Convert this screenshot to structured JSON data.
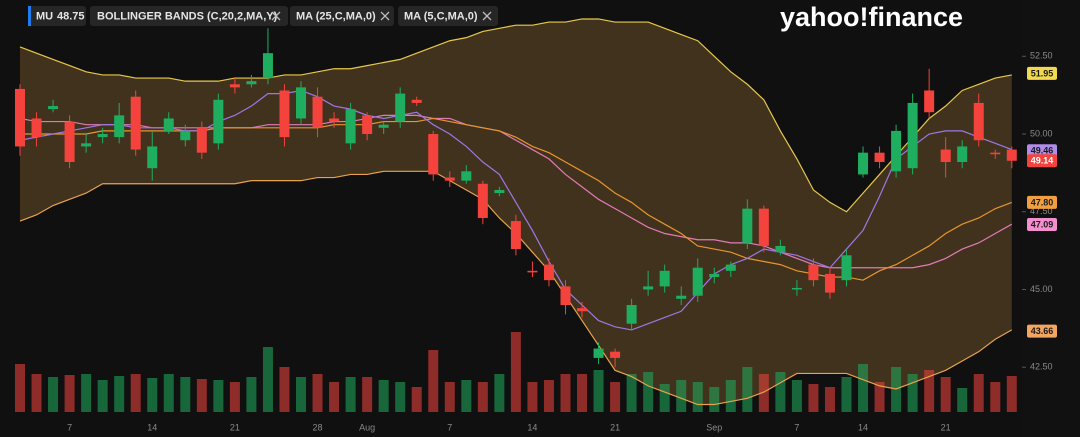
{
  "brand": "yahoo!finance",
  "chart_data": {
    "type": "candlestick",
    "legend": {
      "symbol": "MU",
      "price": 48.75,
      "indicators": [
        "BOLLINGER BANDS (C,20,2,MA,Y)",
        "MA (25,C,MA,0)",
        "MA (5,C,MA,0)"
      ]
    },
    "categories": [
      null,
      null,
      null,
      "7",
      null,
      null,
      null,
      null,
      "14",
      null,
      null,
      null,
      null,
      "21",
      null,
      null,
      null,
      null,
      "28",
      null,
      null,
      "Aug",
      null,
      null,
      null,
      null,
      "7",
      null,
      null,
      null,
      null,
      "14",
      null,
      null,
      null,
      null,
      "21",
      null,
      null,
      null,
      null,
      null,
      "Sep",
      null,
      null,
      null,
      null,
      "7",
      null,
      null,
      null,
      "14",
      null,
      null,
      null,
      null,
      "21",
      null,
      null,
      null,
      null
    ],
    "ylim": [
      54.31,
      41.06
    ],
    "yticks": [
      {
        "value": 52.5,
        "label": "52.50"
      },
      {
        "value": 50,
        "label": "50.00"
      },
      {
        "value": 47.5,
        "label": "47.50"
      },
      {
        "value": 45,
        "label": "45.00"
      },
      {
        "value": 42.5,
        "label": "42.50"
      }
    ],
    "up_color": "#1fae5f",
    "down_color": "#f4433d",
    "candles": {
      "open": [
        51.45,
        50.5,
        50.8,
        50.4,
        49.6,
        49.9,
        49.9,
        51.2,
        48.9,
        50.1,
        49.8,
        50.2,
        49.7,
        51.6,
        51.6,
        51.8,
        51.4,
        50.5,
        51.2,
        50.5,
        49.7,
        50.6,
        50.2,
        50.4,
        51.1,
        50.0,
        48.6,
        48.5,
        48.4,
        48.1,
        47.2,
        45.6,
        45.8,
        45.1,
        44.4,
        42.8,
        43.0,
        43.9,
        45.0,
        45.1,
        44.7,
        44.8,
        45.4,
        45.6,
        46.5,
        47.6,
        46.2,
        45.0,
        45.8,
        45.5,
        45.3,
        48.7,
        49.4,
        48.8,
        48.9,
        51.4,
        49.5,
        49.1,
        51.0,
        49.4,
        49.5
      ],
      "high": [
        51.6,
        50.7,
        51.1,
        50.6,
        50.0,
        50.2,
        51.0,
        51.4,
        50.1,
        50.7,
        50.3,
        50.4,
        51.3,
        51.8,
        51.9,
        53.4,
        51.6,
        51.7,
        51.5,
        50.7,
        51.0,
        50.7,
        50.4,
        51.5,
        51.2,
        50.1,
        48.8,
        49.0,
        48.5,
        48.3,
        47.4,
        45.9,
        46.0,
        45.3,
        44.6,
        43.3,
        43.1,
        44.7,
        45.6,
        45.8,
        45.1,
        46.0,
        45.7,
        45.9,
        47.9,
        47.7,
        46.6,
        45.3,
        46.0,
        45.7,
        46.3,
        49.6,
        49.6,
        50.3,
        51.3,
        52.1,
        49.9,
        49.8,
        51.3,
        49.5,
        49.6
      ],
      "low": [
        49.3,
        49.6,
        50.7,
        48.9,
        49.4,
        49.7,
        49.7,
        49.3,
        48.5,
        50.0,
        49.6,
        49.2,
        49.5,
        51.3,
        51.5,
        51.6,
        49.6,
        50.3,
        49.9,
        50.2,
        49.5,
        49.8,
        50.0,
        50.2,
        50.9,
        48.5,
        48.3,
        48.4,
        47.1,
        48.0,
        46.1,
        45.4,
        45.1,
        44.2,
        44.1,
        42.6,
        42.5,
        43.7,
        44.8,
        44.9,
        44.5,
        44.6,
        45.2,
        45.4,
        46.3,
        46.2,
        46.1,
        44.8,
        45.1,
        44.7,
        45.1,
        48.6,
        48.9,
        48.6,
        48.7,
        50.5,
        48.6,
        48.9,
        49.6,
        49.2,
        48.9
      ],
      "close": [
        49.6,
        49.9,
        50.9,
        49.1,
        49.7,
        50.0,
        50.6,
        49.5,
        49.6,
        50.5,
        50.1,
        49.4,
        51.1,
        51.5,
        51.7,
        52.6,
        49.9,
        51.5,
        50.2,
        50.4,
        50.8,
        50.0,
        50.3,
        51.3,
        51.0,
        48.7,
        48.5,
        48.8,
        47.3,
        48.2,
        46.3,
        45.55,
        45.3,
        44.5,
        44.3,
        43.1,
        42.8,
        44.5,
        45.1,
        45.6,
        44.8,
        45.7,
        45.5,
        45.8,
        47.6,
        46.4,
        46.4,
        45.05,
        45.3,
        44.9,
        46.1,
        49.4,
        49.1,
        50.1,
        51.0,
        50.7,
        49.1,
        49.6,
        49.8,
        49.35,
        49.14
      ],
      "last_value": {
        "value": 49.14,
        "label": "49.14"
      }
    },
    "volume": {
      "vlim": [
        0,
        100
      ],
      "values": [
        48,
        38,
        35,
        37,
        38,
        32,
        36,
        38,
        34,
        38,
        35,
        33,
        32,
        30,
        35,
        65,
        45,
        35,
        38,
        30,
        35,
        35,
        32,
        30,
        25,
        62,
        30,
        32,
        30,
        38,
        80,
        30,
        32,
        38,
        38,
        42,
        30,
        38,
        40,
        28,
        32,
        30,
        25,
        32,
        45,
        38,
        40,
        32,
        28,
        25,
        35,
        48,
        30,
        45,
        38,
        42,
        35,
        24,
        38,
        30,
        36
      ]
    },
    "band_fill": "#4a3820",
    "series": [
      {
        "name": "upper band",
        "color": "#e8c84a",
        "last_value": {
          "value": 51.95,
          "label": "51.95"
        },
        "tag_color": "#f2d94e",
        "values": [
          52.8,
          52.6,
          52.4,
          52.2,
          52.0,
          51.9,
          51.9,
          51.8,
          51.8,
          51.8,
          51.7,
          51.7,
          51.7,
          51.8,
          51.8,
          51.8,
          51.9,
          51.9,
          52.0,
          52.1,
          52.1,
          52.2,
          52.3,
          52.4,
          52.6,
          52.8,
          53.0,
          53.1,
          53.3,
          53.4,
          53.5,
          53.5,
          53.6,
          53.6,
          53.7,
          53.7,
          53.6,
          53.6,
          53.6,
          53.4,
          53.2,
          53.0,
          52.5,
          52.0,
          51.6,
          51.1,
          50.1,
          49.2,
          48.2,
          47.8,
          47.5,
          48.1,
          48.7,
          49.3,
          49.9,
          50.5,
          50.9,
          51.4,
          51.6,
          51.8,
          51.9
        ]
      },
      {
        "name": "middle band",
        "color": "#e27ab8",
        "last_value": {
          "value": 47.09,
          "label": "47.09"
        },
        "tag_color": "#f48fcf",
        "values": [
          50.5,
          50.4,
          50.4,
          50.4,
          50.3,
          50.3,
          50.3,
          50.3,
          50.2,
          50.2,
          50.2,
          50.2,
          50.2,
          50.2,
          50.2,
          50.3,
          50.3,
          50.3,
          50.3,
          50.4,
          50.4,
          50.5,
          50.6,
          50.6,
          50.6,
          50.5,
          50.5,
          50.3,
          50.2,
          50.1,
          49.8,
          49.5,
          49.2,
          48.7,
          48.3,
          47.9,
          47.6,
          47.3,
          47.0,
          46.8,
          46.7,
          46.6,
          46.6,
          46.5,
          46.5,
          46.4,
          46.2,
          46.0,
          45.8,
          45.7,
          45.7,
          45.7,
          45.7,
          45.7,
          45.7,
          45.8,
          46.0,
          46.3,
          46.5,
          46.8,
          47.1
        ]
      },
      {
        "name": "lower band",
        "color": "#e8a24e",
        "last_value": {
          "value": 43.66,
          "label": "43.66"
        },
        "tag_color": "#f2a660",
        "values": [
          47.2,
          47.4,
          47.7,
          47.9,
          48.1,
          48.4,
          48.4,
          48.4,
          48.4,
          48.4,
          48.4,
          48.4,
          48.4,
          48.4,
          48.5,
          48.5,
          48.5,
          48.5,
          48.6,
          48.6,
          48.7,
          48.7,
          48.8,
          48.8,
          48.8,
          48.8,
          48.5,
          48.2,
          47.9,
          47.3,
          46.8,
          46.2,
          45.6,
          44.8,
          44.0,
          43.2,
          42.4,
          42.2,
          41.9,
          41.7,
          41.5,
          41.3,
          41.3,
          41.4,
          41.5,
          41.7,
          42.0,
          42.3,
          42.3,
          42.3,
          42.3,
          42.1,
          41.9,
          41.8,
          42.0,
          42.2,
          42.4,
          42.7,
          43.0,
          43.4,
          43.7
        ]
      },
      {
        "name": "MA 25",
        "color": "#e8952e",
        "last_value": {
          "value": 47.8,
          "label": "47.80"
        },
        "tag_color": "#f0a040",
        "values": [
          50.0,
          50.0,
          50.0,
          50.0,
          50.0,
          50.1,
          50.1,
          50.1,
          50.1,
          50.1,
          50.1,
          50.1,
          50.2,
          50.2,
          50.2,
          50.2,
          50.2,
          50.2,
          50.2,
          50.3,
          50.3,
          50.3,
          50.4,
          50.4,
          50.4,
          50.5,
          50.4,
          50.3,
          50.2,
          50.1,
          49.9,
          49.6,
          49.4,
          49.1,
          48.8,
          48.5,
          48.1,
          47.8,
          47.4,
          47.1,
          46.8,
          46.4,
          46.3,
          46.2,
          46.0,
          45.9,
          45.8,
          45.6,
          45.5,
          45.4,
          45.4,
          45.3,
          45.6,
          45.8,
          46.1,
          46.4,
          46.8,
          47.1,
          47.3,
          47.6,
          47.8
        ]
      },
      {
        "name": "MA 5",
        "color": "#9b78e6",
        "last_value": {
          "value": 49.46,
          "label": "49.46"
        },
        "tag_color": "#b08ce8",
        "values": [
          49.8,
          49.9,
          50.0,
          50.1,
          50.2,
          50.3,
          50.3,
          50.2,
          50.2,
          50.2,
          50.1,
          50.1,
          50.4,
          50.6,
          50.9,
          51.3,
          51.3,
          51.4,
          51.2,
          50.9,
          50.8,
          50.6,
          50.5,
          50.6,
          50.7,
          50.3,
          50.0,
          49.6,
          49.1,
          48.7,
          47.8,
          46.9,
          45.9,
          45.0,
          44.5,
          44.0,
          43.8,
          43.7,
          43.9,
          44.1,
          44.3,
          44.9,
          45.5,
          45.8,
          46.0,
          46.3,
          46.2,
          46.1,
          45.9,
          45.7,
          46.3,
          46.9,
          48.0,
          49.2,
          49.6,
          50.0,
          50.1,
          50.1,
          49.9,
          49.7,
          49.5
        ]
      }
    ]
  }
}
